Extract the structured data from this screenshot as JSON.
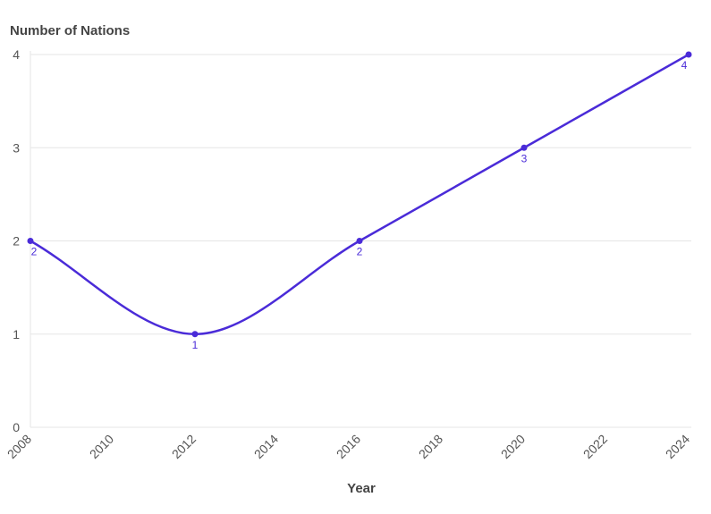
{
  "chart_data": {
    "type": "line",
    "title": "",
    "ylabel": "Number of Nations",
    "xlabel": "Year",
    "x": [
      2008,
      2012,
      2016,
      2020,
      2024
    ],
    "series": [
      {
        "values": [
          2,
          1,
          2,
          3,
          4
        ],
        "color": "#4a2bd8"
      }
    ],
    "data_labels": [
      "2",
      "1",
      "2",
      "3",
      "4"
    ],
    "xlim": [
      2008,
      2024
    ],
    "ylim": [
      0,
      4
    ],
    "xticks": [
      "2008",
      "2010",
      "2012",
      "2014",
      "2016",
      "2018",
      "2020",
      "2022",
      "2024"
    ],
    "yticks": [
      "0",
      "1",
      "2",
      "3",
      "4"
    ],
    "grid": true,
    "line_color": "#4a2bd8"
  }
}
